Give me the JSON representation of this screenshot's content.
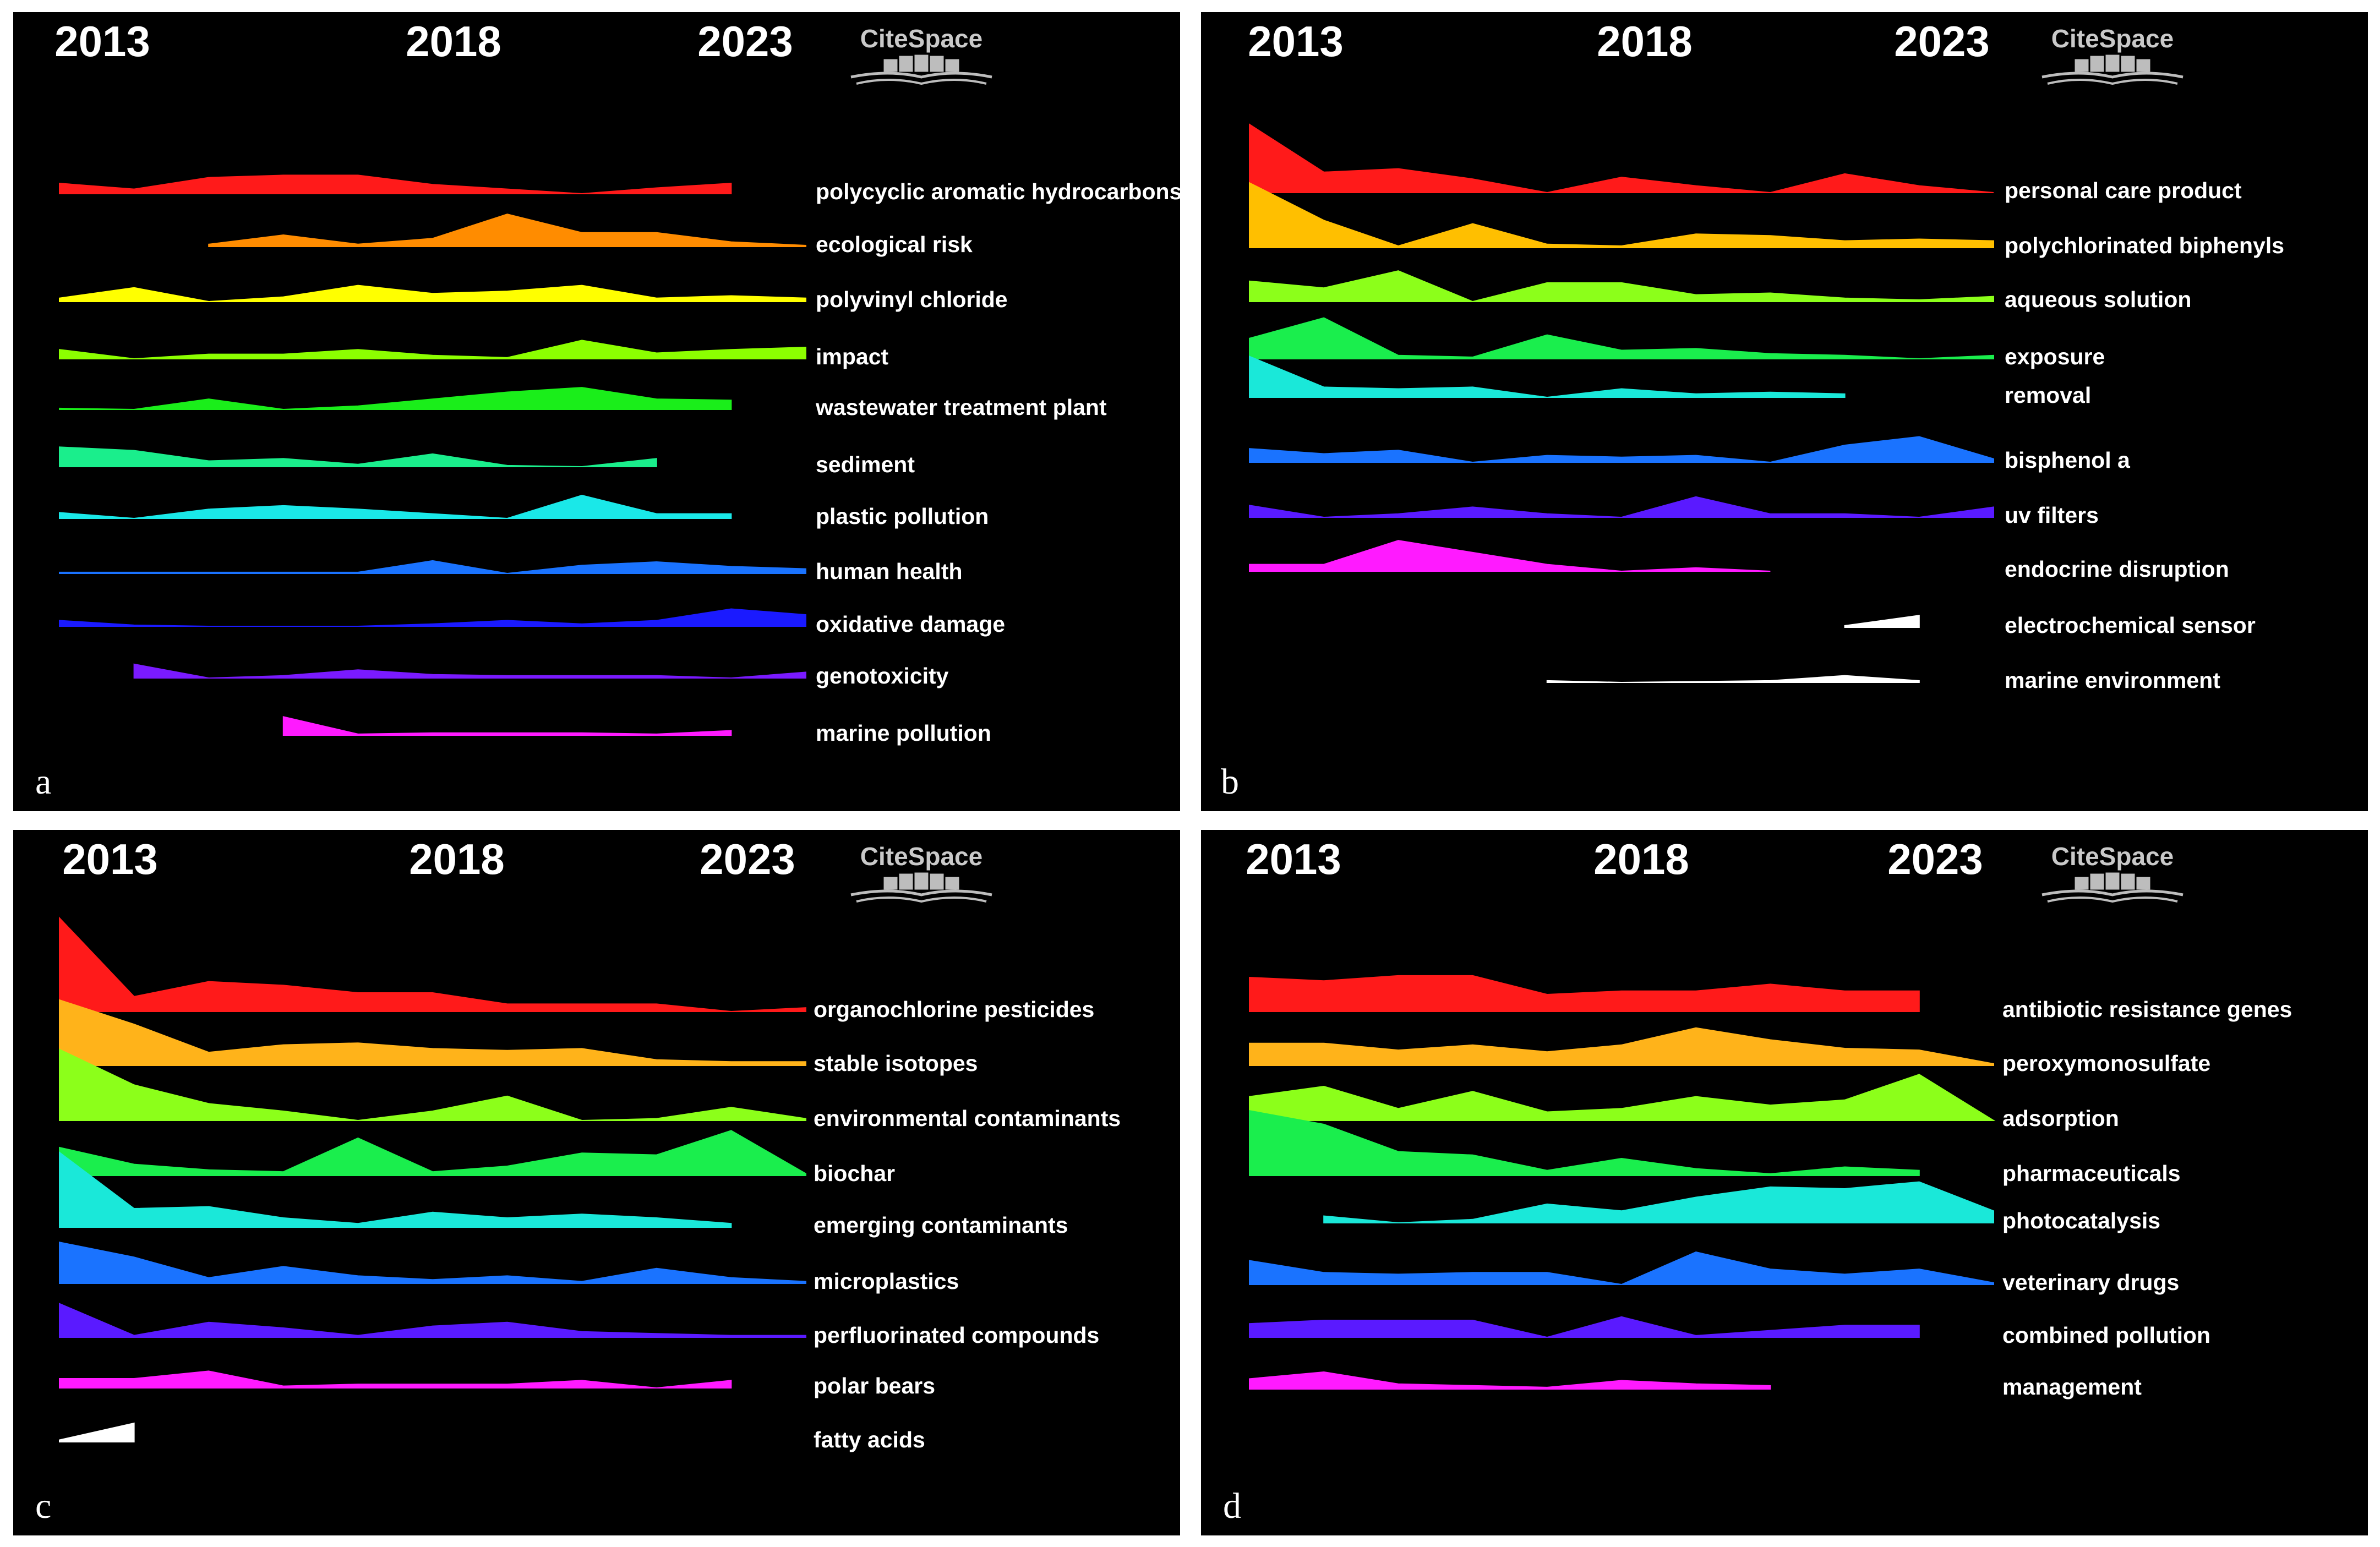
{
  "years": [
    "2013",
    "2018",
    "2023"
  ],
  "logo": {
    "text": "CiteSpace"
  },
  "chart_data": [
    {
      "type": "area",
      "panel": "a",
      "x": [
        2013,
        2014,
        2015,
        2016,
        2017,
        2018,
        2019,
        2020,
        2021,
        2022,
        2023
      ],
      "series": [
        {
          "name": "polycyclic aromatic hydrocarbons",
          "color": "#ff1a1a",
          "values": [
            0.45,
            0.2,
            0.7,
            0.8,
            0.8,
            0.4,
            0.2,
            0,
            0.25,
            0.45,
            null
          ]
        },
        {
          "name": "ecological risk",
          "color": "#ff8c00",
          "values": [
            null,
            null,
            0.1,
            0.5,
            0.1,
            0.35,
            1.4,
            0.6,
            0.6,
            0.2,
            0.05
          ]
        },
        {
          "name": "polyvinyl chloride",
          "color": "#ffff00",
          "values": [
            0.15,
            0.6,
            0,
            0.2,
            0.7,
            0.35,
            0.45,
            0.7,
            0.15,
            0.25,
            0.15
          ]
        },
        {
          "name": "impact",
          "color": "#8cff00",
          "values": [
            0.4,
            0,
            0.2,
            0.2,
            0.4,
            0.15,
            0.05,
            0.8,
            0.25,
            0.4,
            0.5
          ]
        },
        {
          "name": "wastewater treatment plant",
          "color": "#1aee1a",
          "values": [
            0.05,
            0,
            0.45,
            0,
            0.15,
            0.45,
            0.75,
            0.95,
            0.45,
            0.4,
            null
          ]
        },
        {
          "name": "sediment",
          "color": "#1aee8c",
          "values": [
            0.85,
            0.7,
            0.25,
            0.35,
            0.1,
            0.55,
            0.05,
            0,
            0.35,
            null,
            null
          ]
        },
        {
          "name": "plastic pollution",
          "color": "#1ae8e8",
          "values": [
            0.25,
            0,
            0.4,
            0.55,
            0.4,
            0.2,
            0,
            1.0,
            0.2,
            0.2,
            null
          ]
        },
        {
          "name": "human health",
          "color": "#1a73ff",
          "values": [
            0.05,
            0.05,
            0.05,
            0.05,
            0.05,
            0.55,
            0,
            0.35,
            0.5,
            0.3,
            0.2
          ]
        },
        {
          "name": "oxidative damage",
          "color": "#1a1aff",
          "values": [
            0.25,
            0.05,
            0,
            0,
            0,
            0.1,
            0.25,
            0.1,
            0.25,
            0.75,
            0.5
          ]
        },
        {
          "name": "genotoxicity",
          "color": "#7a1aff",
          "values": [
            null,
            0.6,
            0,
            0.1,
            0.35,
            0.15,
            0.1,
            0.1,
            0.1,
            0,
            0.25
          ]
        },
        {
          "name": "marine pollution",
          "color": "#ff1aff",
          "values": [
            null,
            null,
            null,
            0.8,
            0.05,
            0.1,
            0.1,
            0.1,
            0.05,
            0.2,
            null
          ]
        }
      ]
    },
    {
      "type": "area",
      "panel": "b",
      "x": [
        2013,
        2014,
        2015,
        2016,
        2017,
        2018,
        2019,
        2020,
        2021,
        2022,
        2023
      ],
      "series": [
        {
          "name": "personal care product",
          "color": "#ff1a1a",
          "values": [
            2.0,
            0.6,
            0.7,
            0.4,
            0,
            0.45,
            0.2,
            0,
            0.55,
            0.2,
            0
          ]
        },
        {
          "name": "polychlorinated biphenyls",
          "color": "#ffbf00",
          "values": [
            1.9,
            0.8,
            0.05,
            0.7,
            0.1,
            0.05,
            0.4,
            0.35,
            0.2,
            0.25,
            0.2
          ]
        },
        {
          "name": "aqueous solution",
          "color": "#8cff1a",
          "values": [
            0.6,
            0.4,
            0.9,
            0,
            0.55,
            0.55,
            0.2,
            0.25,
            0.1,
            0.05,
            0.15
          ]
        },
        {
          "name": "exposure",
          "color": "#1aee4d",
          "values": [
            0.6,
            1.2,
            0.1,
            0.05,
            0.7,
            0.25,
            0.3,
            0.15,
            0.1,
            0,
            0.1
          ]
        },
        {
          "name": "removal",
          "color": "#1ae8d9",
          "values": [
            1.2,
            0.3,
            0.25,
            0.3,
            0,
            0.25,
            0.1,
            0.15,
            0.1,
            null,
            null
          ]
        },
        {
          "name": "bisphenol a",
          "color": "#1a73ff",
          "values": [
            0.4,
            0.25,
            0.35,
            0,
            0.2,
            0.15,
            0.2,
            0,
            0.5,
            0.75,
            0.1
          ]
        },
        {
          "name": "uv filters",
          "color": "#5a1aff",
          "values": [
            0.35,
            0,
            0.1,
            0.3,
            0.1,
            0,
            0.6,
            0.1,
            0.1,
            0,
            0.3
          ]
        },
        {
          "name": "endocrine disruption",
          "color": "#ff1aff",
          "values": [
            0.2,
            0.2,
            0.9,
            0.55,
            0.2,
            0,
            0.1,
            0,
            null,
            null,
            null
          ]
        },
        {
          "name": "electrochemical sensor",
          "color": "#ffffff",
          "values": [
            null,
            null,
            null,
            null,
            null,
            null,
            null,
            null,
            0.05,
            0.35,
            null
          ]
        },
        {
          "name": "marine environment",
          "color": "#ffffff",
          "values": [
            null,
            null,
            null,
            null,
            0.05,
            0,
            null,
            0.05,
            0.2,
            0.05,
            null
          ]
        }
      ]
    },
    {
      "type": "area",
      "panel": "c",
      "x": [
        2013,
        2014,
        2015,
        2016,
        2017,
        2018,
        2019,
        2020,
        2021,
        2022,
        2023
      ],
      "series": [
        {
          "name": "organochlorine pesticides",
          "color": "#ff1a1a",
          "values": [
            2.5,
            0.4,
            0.8,
            0.7,
            0.5,
            0.5,
            0.2,
            0.2,
            0.2,
            0,
            0.1
          ]
        },
        {
          "name": "stable isotopes",
          "color": "#ffb31a",
          "values": [
            1.75,
            1.1,
            0.35,
            0.55,
            0.6,
            0.45,
            0.4,
            0.45,
            0.15,
            0.1,
            0.1
          ]
        },
        {
          "name": "environmental contaminants",
          "color": "#8cff1a",
          "values": [
            1.9,
            0.95,
            0.45,
            0.25,
            0,
            0.25,
            0.65,
            0,
            0.05,
            0.35,
            0.05
          ]
        },
        {
          "name": "biochar",
          "color": "#1aee4d",
          "values": [
            0.75,
            0.3,
            0.15,
            0.1,
            1.0,
            0.1,
            0.25,
            0.6,
            0.55,
            1.2,
            0.05
          ]
        },
        {
          "name": "emerging contaminants",
          "color": "#1ae8d9",
          "values": [
            2.0,
            0.5,
            0.55,
            0.25,
            0.1,
            0.4,
            0.25,
            0.35,
            0.25,
            0.1,
            null
          ]
        },
        {
          "name": "microplastics",
          "color": "#1a73ff",
          "values": [
            1.1,
            0.7,
            0.15,
            0.45,
            0.2,
            0.1,
            0.2,
            0.05,
            0.4,
            0.15,
            0.05
          ]
        },
        {
          "name": "perfluorinated compounds",
          "color": "#5a1aff",
          "values": [
            0.9,
            0.05,
            0.4,
            0.25,
            0.05,
            0.3,
            0.4,
            0.15,
            0.1,
            0.05,
            0.05
          ]
        },
        {
          "name": "polar bears",
          "color": "#ff1aff",
          "values": [
            0.25,
            0.25,
            0.45,
            0.05,
            0.1,
            0.1,
            0.1,
            0.2,
            0,
            0.2,
            null
          ]
        },
        {
          "name": "fatty acids",
          "color": "#ffffff",
          "values": [
            0.05,
            0.5,
            null,
            null,
            null,
            null,
            null,
            null,
            null,
            null,
            null
          ]
        }
      ]
    },
    {
      "type": "area",
      "panel": "d",
      "x": [
        2013,
        2014,
        2015,
        2016,
        2017,
        2018,
        2019,
        2020,
        2021,
        2022,
        2023
      ],
      "series": [
        {
          "name": "antibiotic resistance genes",
          "color": "#ff1a1a",
          "values": [
            1.0,
            0.9,
            1.05,
            1.05,
            0.5,
            0.6,
            0.6,
            0.8,
            0.6,
            0.6,
            null
          ]
        },
        {
          "name": "peroxymonosulfate",
          "color": "#ffb31a",
          "values": [
            0.65,
            0.65,
            0.45,
            0.6,
            0.4,
            0.6,
            1.1,
            0.75,
            0.5,
            0.45,
            0.05
          ]
        },
        {
          "name": "adsorption",
          "color": "#8cff1a",
          "values": [
            0.7,
            1.0,
            0.35,
            0.85,
            0.25,
            0.35,
            0.7,
            0.45,
            0.6,
            1.35,
            0
          ]
        },
        {
          "name": "pharmaceuticals",
          "color": "#1aee4d",
          "values": [
            1.9,
            1.5,
            0.7,
            0.6,
            0.15,
            0.5,
            0.2,
            0.05,
            0.25,
            0.15,
            null
          ]
        },
        {
          "name": "photocatalysis",
          "color": "#1ae8d9",
          "values": [
            null,
            0.2,
            0,
            0.1,
            0.55,
            0.35,
            0.75,
            1.05,
            1.0,
            1.2,
            0.35
          ]
        },
        {
          "name": "veterinary drugs",
          "color": "#1a73ff",
          "values": [
            0.7,
            0.35,
            0.3,
            0.35,
            0.35,
            0,
            0.95,
            0.45,
            0.3,
            0.45,
            0.05
          ]
        },
        {
          "name": "combined pollution",
          "color": "#5a1aff",
          "values": [
            0.4,
            0.5,
            0.5,
            0.5,
            0,
            0.6,
            0.05,
            0.2,
            0.35,
            0.35,
            null
          ]
        },
        {
          "name": "management",
          "color": "#ff1aff",
          "values": [
            0.3,
            0.5,
            0.15,
            0.1,
            0.05,
            0.25,
            0.15,
            0.1,
            null,
            null,
            null
          ]
        }
      ]
    }
  ]
}
